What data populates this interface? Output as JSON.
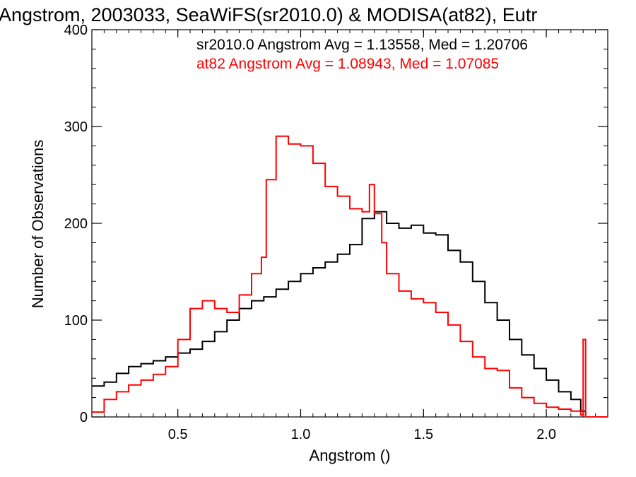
{
  "chart_data": {
    "type": "line",
    "style": "step-histogram",
    "title": "Angstrom, 2003033, SeaWiFS(sr2010.0) & MODISA(at82), Eutr",
    "xlabel": "Angstrom ()",
    "ylabel": "Number of Observations",
    "xlim": [
      0.15,
      2.25
    ],
    "ylim": [
      0,
      400
    ],
    "x_ticks": [
      0.5,
      1.0,
      1.5,
      2.0
    ],
    "x_tick_labels": [
      "0.5",
      "1.0",
      "1.5",
      "2.0"
    ],
    "y_ticks": [
      0,
      100,
      200,
      300,
      400
    ],
    "y_tick_labels": [
      "0",
      "100",
      "200",
      "300",
      "400"
    ],
    "grid": false,
    "legend_placement": "top-right",
    "series": [
      {
        "name": "sr2010.0",
        "color": "#000000",
        "legend": "sr2010.0 Angstrom Avg = 1.13558, Med = 1.20706",
        "x": [
          0.15,
          0.2,
          0.25,
          0.3,
          0.35,
          0.4,
          0.45,
          0.5,
          0.55,
          0.6,
          0.65,
          0.7,
          0.75,
          0.8,
          0.85,
          0.9,
          0.95,
          1.0,
          1.05,
          1.1,
          1.15,
          1.2,
          1.25,
          1.3,
          1.35,
          1.4,
          1.45,
          1.5,
          1.55,
          1.6,
          1.65,
          1.7,
          1.75,
          1.8,
          1.85,
          1.9,
          1.95,
          2.0,
          2.05,
          2.1,
          2.14,
          2.16,
          2.25
        ],
        "y": [
          32,
          36,
          45,
          52,
          55,
          58,
          62,
          66,
          70,
          78,
          88,
          100,
          112,
          120,
          124,
          132,
          140,
          148,
          154,
          160,
          168,
          178,
          205,
          212,
          200,
          195,
          198,
          190,
          188,
          172,
          160,
          140,
          118,
          100,
          80,
          64,
          50,
          38,
          26,
          18,
          6,
          0,
          0
        ]
      },
      {
        "name": "at82",
        "color": "#ff0000",
        "legend": "at82 Angstrom Avg = 1.08943, Med = 1.07085",
        "x": [
          0.15,
          0.2,
          0.25,
          0.3,
          0.35,
          0.4,
          0.45,
          0.5,
          0.55,
          0.6,
          0.65,
          0.7,
          0.75,
          0.8,
          0.84,
          0.86,
          0.9,
          0.95,
          1.0,
          1.05,
          1.1,
          1.15,
          1.2,
          1.25,
          1.28,
          1.3,
          1.33,
          1.35,
          1.4,
          1.45,
          1.5,
          1.55,
          1.6,
          1.65,
          1.7,
          1.75,
          1.8,
          1.85,
          1.9,
          1.95,
          2.0,
          2.05,
          2.1,
          2.14,
          2.15,
          2.16,
          2.25
        ],
        "y": [
          5,
          18,
          26,
          33,
          38,
          44,
          52,
          80,
          112,
          120,
          112,
          108,
          126,
          148,
          165,
          245,
          290,
          282,
          280,
          262,
          238,
          228,
          215,
          212,
          240,
          210,
          180,
          148,
          130,
          122,
          118,
          108,
          95,
          78,
          62,
          50,
          48,
          30,
          20,
          14,
          10,
          8,
          6,
          2,
          80,
          0,
          0
        ]
      }
    ]
  }
}
